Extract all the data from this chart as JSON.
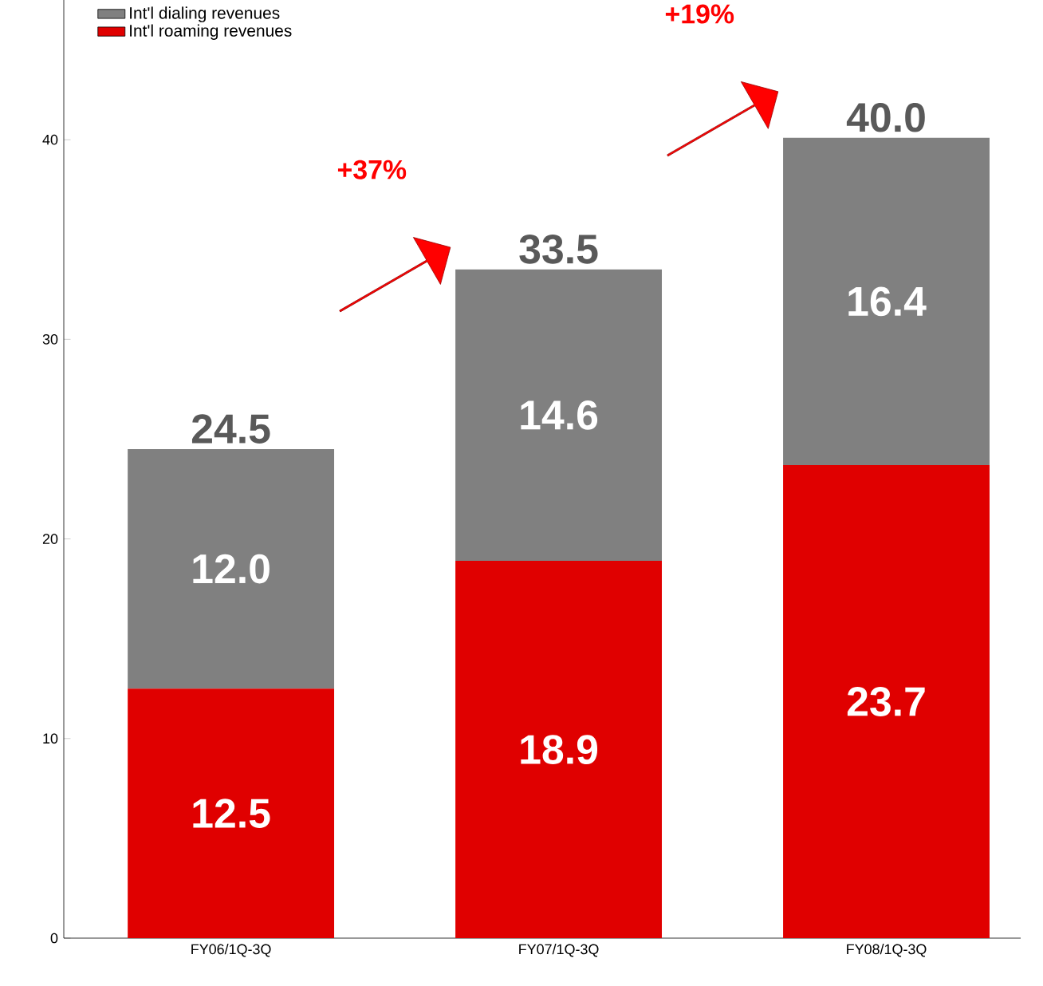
{
  "chart_data": {
    "type": "bar",
    "stacked": true,
    "categories": [
      "FY06/1Q-3Q",
      "FY07/1Q-3Q",
      "FY08/1Q-3Q"
    ],
    "series": [
      {
        "name": "Int'l roaming revenues",
        "color": "#e00000",
        "values": [
          12.5,
          18.9,
          23.7
        ],
        "value_labels": [
          "12.5",
          "18.9",
          "23.7"
        ]
      },
      {
        "name": "Int'l dialing revenues",
        "color": "#808080",
        "values": [
          12.0,
          14.6,
          16.4
        ],
        "value_labels": [
          "12.0",
          "14.6",
          "16.4"
        ]
      }
    ],
    "totals": [
      "24.5",
      "33.5",
      "40.0"
    ],
    "annotations": [
      "+37%",
      "+19%"
    ],
    "ylim": [
      0,
      47
    ],
    "yticks": [
      0,
      10,
      20,
      30,
      40
    ],
    "grid": false,
    "legend": "top left"
  }
}
